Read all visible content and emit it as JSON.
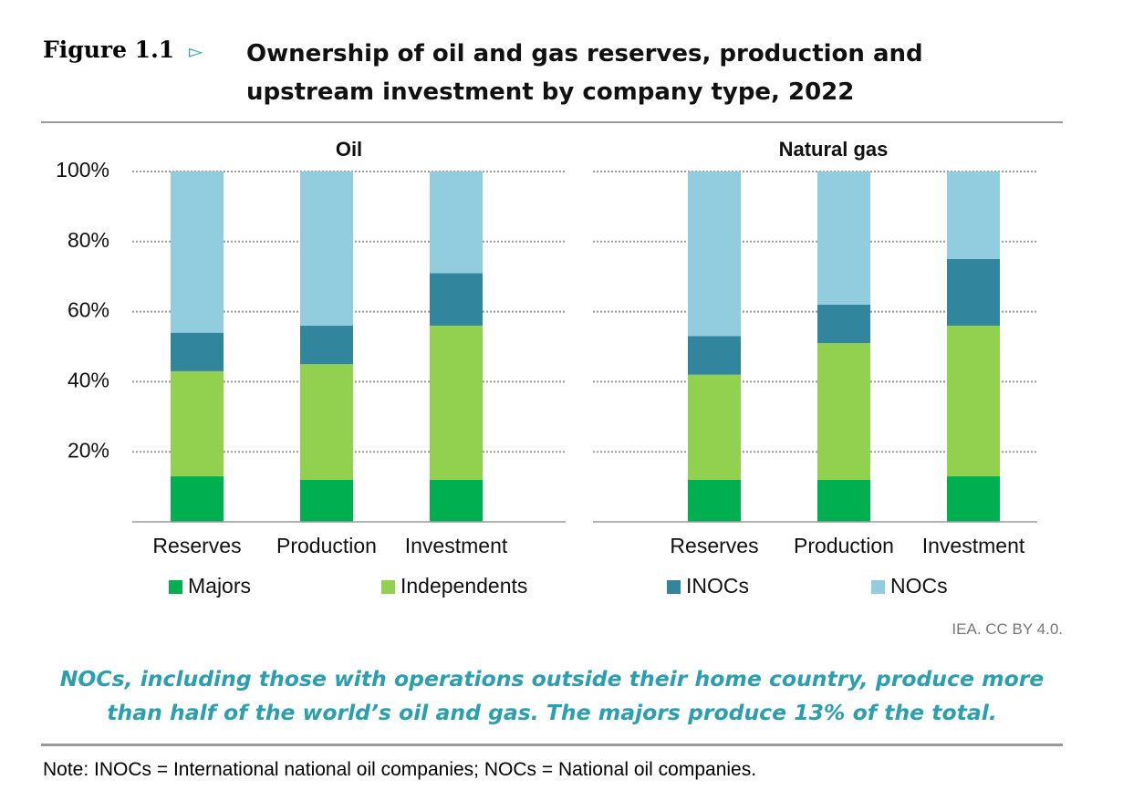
{
  "figure_label": "Figure 1.1",
  "title": "Ownership of oil and gas reserves, production and upstream investment by company type, 2022",
  "credit": "IEA. CC BY 4.0.",
  "caption": "NOCs, including those with operations outside their home country, produce more than half of the world’s oil and gas. The majors produce 13% of the total.",
  "note": "Note: INOCs = International national oil companies; NOCs = National oil companies.",
  "chart_data": [
    {
      "type": "stacked-bar",
      "title": "Oil",
      "categories": [
        "Reserves",
        "Production",
        "Investment"
      ],
      "series": [
        {
          "name": "Majors",
          "color": "#00b050",
          "values": [
            13,
            12,
            12
          ]
        },
        {
          "name": "Independents",
          "color": "#92d050",
          "values": [
            30,
            33,
            44
          ]
        },
        {
          "name": "INOCs",
          "color": "#31859c",
          "values": [
            11,
            11,
            15
          ]
        },
        {
          "name": "NOCs",
          "color": "#92cddf",
          "values": [
            46,
            44,
            29
          ]
        }
      ],
      "ylim": [
        0,
        100
      ],
      "yticks": [
        {
          "value": 20,
          "label": "20%"
        },
        {
          "value": 40,
          "label": "40%"
        },
        {
          "value": 60,
          "label": "60%"
        },
        {
          "value": 80,
          "label": "80%"
        },
        {
          "value": 100,
          "label": "100%"
        }
      ],
      "grid": true
    },
    {
      "type": "stacked-bar",
      "title": "Natural gas",
      "categories": [
        "Reserves",
        "Production",
        "Investment"
      ],
      "series": [
        {
          "color": "#00b050",
          "values": [
            12,
            12,
            13
          ]
        },
        {
          "color": "#92d050",
          "values": [
            30,
            39,
            43
          ]
        },
        {
          "color": "#31859c",
          "values": [
            11,
            11,
            19
          ]
        },
        {
          "color": "#92cddf",
          "values": [
            47,
            38,
            25
          ]
        }
      ],
      "ylim": [
        0,
        100
      ],
      "yticks": [
        20,
        40,
        60,
        80,
        100
      ],
      "grid": true
    }
  ]
}
